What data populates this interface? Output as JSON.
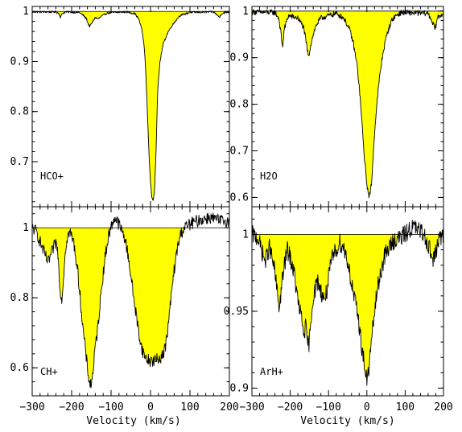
{
  "chart_data": [
    {
      "type": "area",
      "panel_label": "HCO+",
      "xlim": [
        -300,
        200
      ],
      "ylim": [
        0.61,
        1.01
      ],
      "baseline": 1.0,
      "yticks": [
        1,
        0.9,
        0.8,
        0.7
      ],
      "ytick_labels": [
        "1",
        "0.9",
        "0.8",
        "0.7"
      ],
      "xticks": [
        -300,
        -200,
        -100,
        0,
        100,
        200
      ],
      "noise": 0.002,
      "x": [
        -300,
        -240,
        -232,
        -228,
        -224,
        -215,
        -180,
        -170,
        -162,
        -158,
        -154,
        -150,
        -145,
        -140,
        -132,
        -125,
        -110,
        -60,
        -40,
        -30,
        -22,
        -16,
        -12,
        -9,
        -6,
        -3,
        0,
        3,
        6,
        10,
        14,
        18,
        24,
        32,
        45,
        60,
        75,
        100,
        160,
        170,
        175,
        180,
        200
      ],
      "y": [
        0.999,
        0.999,
        0.996,
        0.988,
        0.996,
        0.999,
        0.998,
        0.992,
        0.985,
        0.975,
        0.97,
        0.975,
        0.982,
        0.988,
        0.985,
        0.99,
        0.997,
        0.999,
        0.996,
        0.985,
        0.965,
        0.93,
        0.88,
        0.82,
        0.76,
        0.7,
        0.66,
        0.63,
        0.62,
        0.64,
        0.72,
        0.84,
        0.9,
        0.935,
        0.96,
        0.978,
        0.992,
        0.998,
        0.999,
        0.992,
        0.988,
        0.996,
        0.999
      ]
    },
    {
      "type": "area",
      "panel_label": "H2O",
      "xlim": [
        -300,
        200
      ],
      "ylim": [
        0.58,
        1.01
      ],
      "baseline": 1.0,
      "yticks": [
        1,
        0.9,
        0.8,
        0.7,
        0.6
      ],
      "ytick_labels": [
        "1",
        "0.9",
        "0.8",
        "0.7",
        "0.6"
      ],
      "xticks": [
        -300,
        -200,
        -100,
        0,
        100,
        200
      ],
      "noise": 0.006,
      "x": [
        -300,
        -240,
        -230,
        -224,
        -220,
        -216,
        -205,
        -180,
        -165,
        -158,
        -152,
        -146,
        -140,
        -132,
        -120,
        -100,
        -80,
        -60,
        -45,
        -35,
        -25,
        -18,
        -12,
        -6,
        0,
        4,
        8,
        12,
        16,
        20,
        26,
        32,
        40,
        48,
        56,
        65,
        75,
        90,
        160,
        172,
        178,
        184,
        200
      ],
      "y": [
        0.998,
        0.997,
        0.985,
        0.95,
        0.92,
        0.96,
        0.99,
        0.985,
        0.965,
        0.93,
        0.9,
        0.93,
        0.95,
        0.97,
        0.985,
        0.99,
        0.995,
        0.985,
        0.96,
        0.93,
        0.88,
        0.82,
        0.75,
        0.68,
        0.63,
        0.605,
        0.605,
        0.63,
        0.68,
        0.74,
        0.8,
        0.85,
        0.9,
        0.935,
        0.96,
        0.98,
        0.99,
        0.997,
        0.995,
        0.975,
        0.96,
        0.985,
        0.997
      ]
    },
    {
      "type": "area",
      "panel_label": "CH+",
      "xlim": [
        -300,
        200
      ],
      "ylim": [
        0.52,
        1.06
      ],
      "baseline": 1.0,
      "yticks": [
        1,
        0.8,
        0.6
      ],
      "ytick_labels": [
        "1",
        "0.8",
        "0.6"
      ],
      "xticks": [
        -300,
        -200,
        -100,
        0,
        100,
        200
      ],
      "noise": 0.018,
      "x": [
        -300,
        -290,
        -280,
        -270,
        -260,
        -250,
        -240,
        -235,
        -230,
        -226,
        -222,
        -218,
        -212,
        -205,
        -195,
        -185,
        -178,
        -172,
        -166,
        -160,
        -155,
        -150,
        -145,
        -140,
        -135,
        -130,
        -124,
        -118,
        -112,
        -106,
        -100,
        -92,
        -80,
        -65,
        -55,
        -45,
        -35,
        -25,
        -18,
        -10,
        0,
        10,
        20,
        30,
        38,
        45,
        52,
        60,
        68,
        76,
        85,
        100,
        120,
        150,
        175,
        200
      ],
      "y": [
        1.0,
        0.99,
        0.96,
        0.93,
        0.9,
        0.93,
        0.96,
        0.93,
        0.84,
        0.79,
        0.83,
        0.91,
        0.97,
        0.99,
        0.96,
        0.88,
        0.8,
        0.72,
        0.66,
        0.6,
        0.56,
        0.55,
        0.6,
        0.66,
        0.7,
        0.76,
        0.83,
        0.89,
        0.94,
        0.98,
        1.0,
        1.03,
        1.01,
        0.97,
        0.91,
        0.82,
        0.74,
        0.67,
        0.64,
        0.625,
        0.62,
        0.62,
        0.625,
        0.635,
        0.66,
        0.72,
        0.8,
        0.88,
        0.94,
        0.98,
        1.0,
        1.01,
        1.02,
        1.03,
        1.02,
        1.02
      ]
    },
    {
      "type": "area",
      "panel_label": "ArH+",
      "xlim": [
        -300,
        200
      ],
      "ylim": [
        0.895,
        1.018
      ],
      "baseline": 1.0,
      "yticks": [
        1,
        0.95,
        0.9
      ],
      "ytick_labels": [
        "1",
        "0.95",
        "0.9"
      ],
      "xticks": [
        -300,
        -200,
        -100,
        0,
        100,
        200
      ],
      "noise": 0.006,
      "x": [
        -300,
        -285,
        -275,
        -265,
        -255,
        -248,
        -240,
        -234,
        -228,
        -222,
        -215,
        -208,
        -200,
        -190,
        -182,
        -175,
        -170,
        -165,
        -160,
        -156,
        -152,
        -148,
        -144,
        -140,
        -134,
        -128,
        -120,
        -112,
        -105,
        -98,
        -90,
        -80,
        -70,
        -58,
        -48,
        -38,
        -30,
        -22,
        -15,
        -8,
        -4,
        0,
        4,
        8,
        14,
        20,
        28,
        36,
        45,
        55,
        70,
        90,
        120,
        150,
        165,
        172,
        178,
        185,
        200
      ],
      "y": [
        1.0,
        0.998,
        0.99,
        0.982,
        0.992,
        0.985,
        0.975,
        0.962,
        0.952,
        0.968,
        0.98,
        0.99,
        0.985,
        0.975,
        0.96,
        0.95,
        0.945,
        0.935,
        0.94,
        0.93,
        0.928,
        0.935,
        0.95,
        0.96,
        0.965,
        0.97,
        0.963,
        0.958,
        0.962,
        0.975,
        0.985,
        0.99,
        0.995,
        0.99,
        0.98,
        0.965,
        0.955,
        0.945,
        0.93,
        0.918,
        0.91,
        0.905,
        0.91,
        0.92,
        0.935,
        0.95,
        0.965,
        0.975,
        0.985,
        0.99,
        0.996,
        0.998,
        1.005,
        1.0,
        0.99,
        0.983,
        0.986,
        0.995,
        1.0
      ]
    }
  ],
  "axes": {
    "x_tick_labels": [
      "−300",
      "−200",
      "−100",
      "0",
      "100",
      "200"
    ],
    "xlabel": "Velocity (km/s)"
  },
  "colors": {
    "fill": "#ffff00",
    "line": "#000000",
    "background": "#ffffff"
  }
}
